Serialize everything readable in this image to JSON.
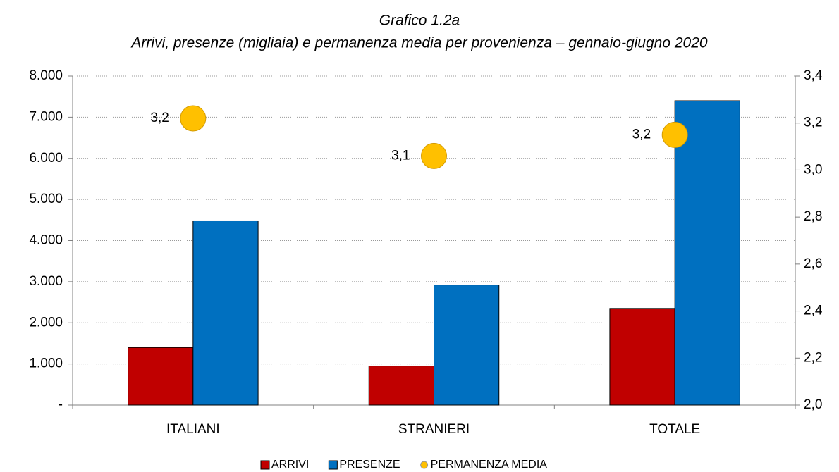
{
  "chart_data": {
    "type": "bar",
    "title": "Grafico 1.2a",
    "subtitle": "Arrivi, presenze (migliaia) e permanenza media per provenienza – gennaio-giugno 2020",
    "categories": [
      "ITALIANI",
      "STRANIERI",
      "TOTALE"
    ],
    "series": [
      {
        "name": "ARRIVI",
        "color": "#c00000",
        "values": [
          1400,
          950,
          2350
        ]
      },
      {
        "name": "PRESENZE",
        "color": "#0070c0",
        "values": [
          4480,
          2920,
          7400
        ]
      },
      {
        "name": "PERMANENZA MEDIA",
        "color": "#ffc000",
        "type": "scatter",
        "axis": "y2",
        "values": [
          3.22,
          3.06,
          3.15
        ],
        "value_labels": [
          "3,2",
          "3,1",
          "3,2"
        ]
      }
    ],
    "ylim": [
      0,
      8000
    ],
    "yticks": [
      {
        "value": 0,
        "label": "-"
      },
      {
        "value": 1000,
        "label": "1.000"
      },
      {
        "value": 2000,
        "label": "2.000"
      },
      {
        "value": 3000,
        "label": "3.000"
      },
      {
        "value": 4000,
        "label": "4.000"
      },
      {
        "value": 5000,
        "label": "5.000"
      },
      {
        "value": 6000,
        "label": "6.000"
      },
      {
        "value": 7000,
        "label": "7.000"
      },
      {
        "value": 8000,
        "label": "8.000"
      }
    ],
    "y2lim": [
      2.0,
      3.4
    ],
    "y2ticks": [
      {
        "value": 2.0,
        "label": "2,0"
      },
      {
        "value": 2.2,
        "label": "2,2"
      },
      {
        "value": 2.4,
        "label": "2,4"
      },
      {
        "value": 2.6,
        "label": "2,6"
      },
      {
        "value": 2.8,
        "label": "2,8"
      },
      {
        "value": 3.0,
        "label": "3,0"
      },
      {
        "value": 3.2,
        "label": "3,2"
      },
      {
        "value": 3.4,
        "label": "3,4"
      }
    ],
    "grid": true,
    "legend": "bottom"
  }
}
